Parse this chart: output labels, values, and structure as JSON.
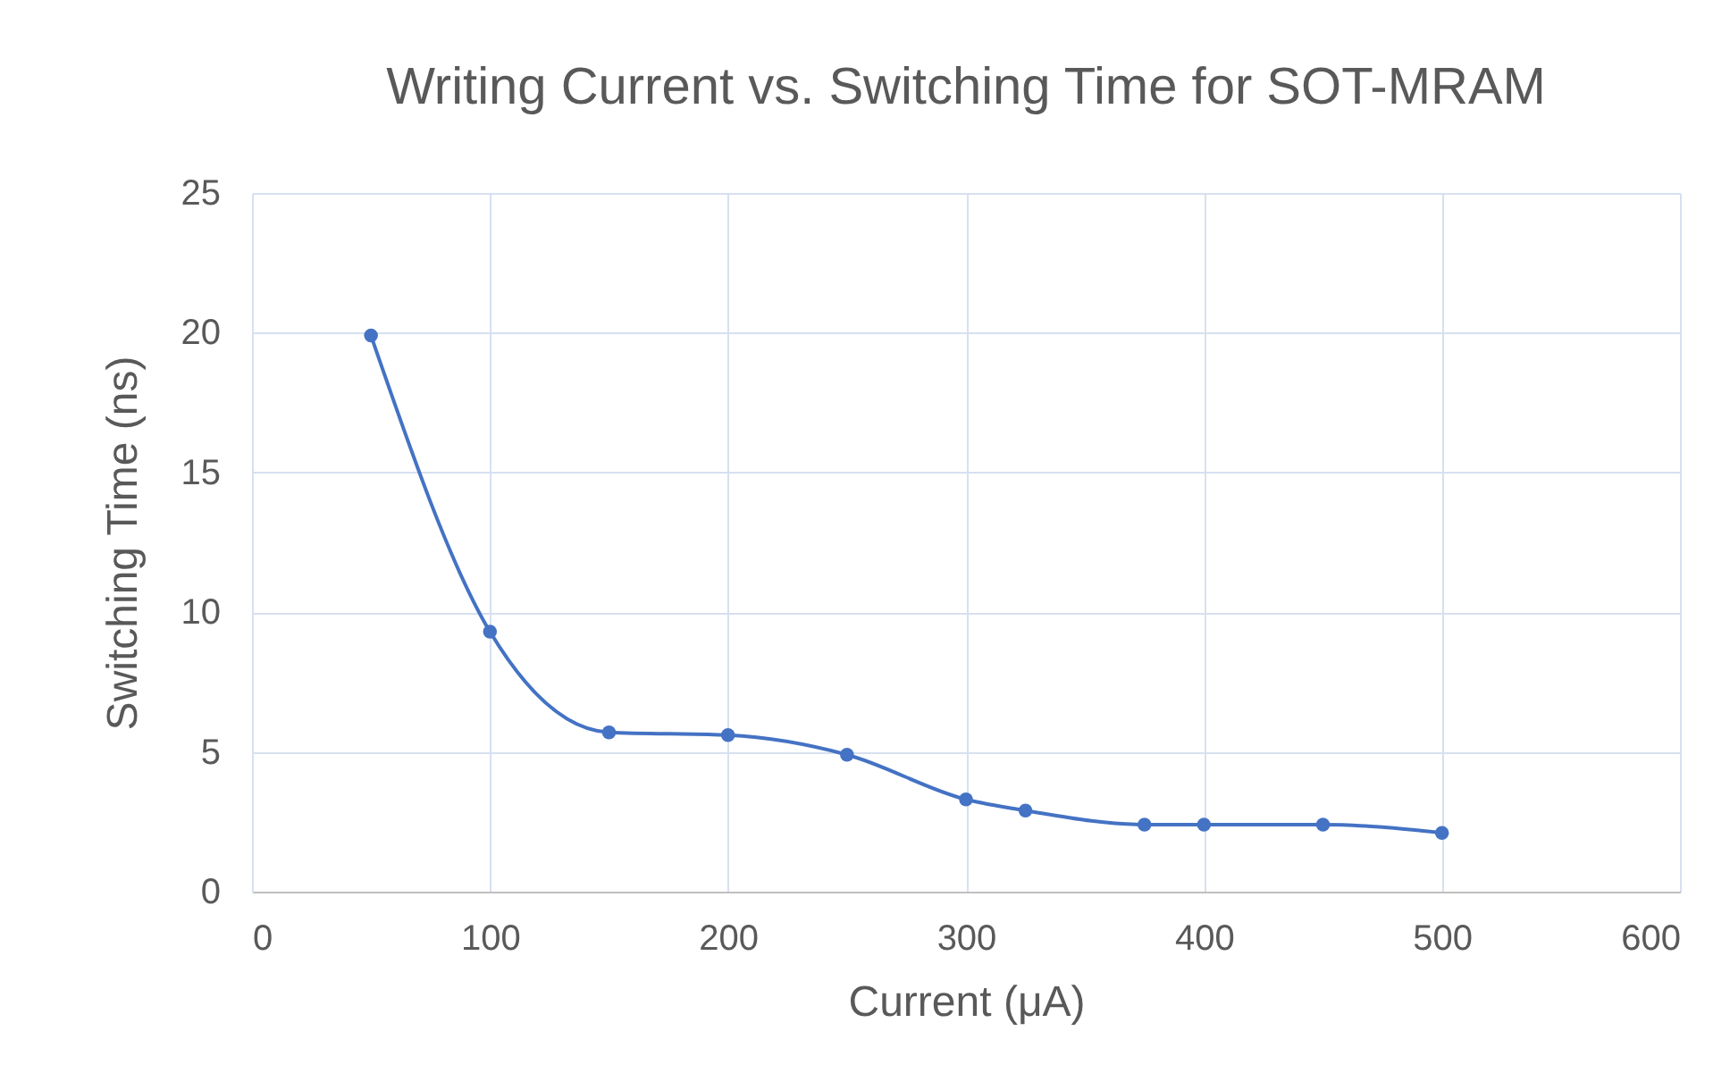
{
  "chart_data": {
    "type": "line",
    "title": "Writing Current vs. Switching Time for SOT-MRAM",
    "xlabel": "Current (μA)",
    "ylabel": "Switching Time (ns)",
    "x": [
      50,
      100,
      150,
      200,
      250,
      300,
      325,
      375,
      400,
      450,
      500
    ],
    "series": [
      {
        "color": "#4472c4",
        "values": [
          19.9,
          9.3,
          5.7,
          5.6,
          4.9,
          3.3,
          2.9,
          2.4,
          2.4,
          2.4,
          2.1
        ]
      }
    ],
    "xlim": [
      0,
      600
    ],
    "xticks": [
      0,
      100,
      200,
      300,
      400,
      500,
      600
    ],
    "ylim": [
      0,
      25
    ],
    "yticks": [
      0,
      5,
      10,
      15,
      20,
      25
    ],
    "grid": true,
    "marker": "circle",
    "line_style": "solid"
  }
}
